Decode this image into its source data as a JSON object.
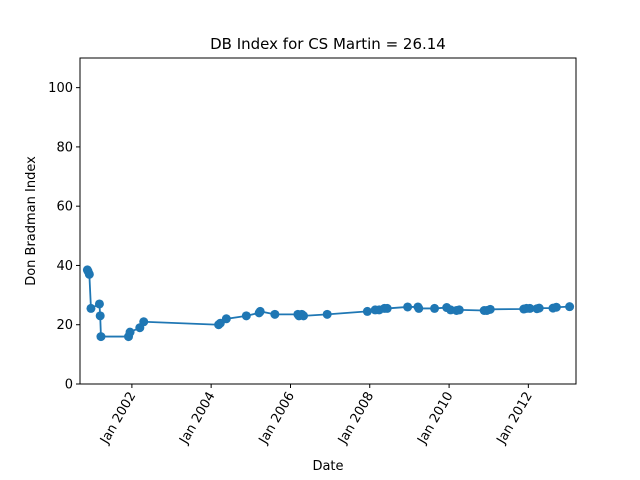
{
  "chart_data": {
    "type": "line",
    "title": "DB Index for CS Martin = 26.14",
    "xlabel": "Date",
    "ylabel": "Don Bradman Index",
    "ylim": [
      0,
      110
    ],
    "xlim": [
      "2000-09-10",
      "2013-03-15"
    ],
    "grid": false,
    "y_ticks": [
      0,
      20,
      40,
      60,
      80,
      100
    ],
    "x_ticks": [
      {
        "date": "2002-01-01",
        "label": "Jan 2002"
      },
      {
        "date": "2004-01-01",
        "label": "Jan 2004"
      },
      {
        "date": "2006-01-01",
        "label": "Jan 2006"
      },
      {
        "date": "2008-01-01",
        "label": "Jan 2008"
      },
      {
        "date": "2010-01-01",
        "label": "Jan 2010"
      },
      {
        "date": "2012-01-01",
        "label": "Jan 2012"
      }
    ],
    "color": "#1f77b4",
    "series": [
      {
        "x": [
          "2000-11-17",
          "2000-11-24",
          "2000-12-05",
          "2000-12-20",
          "2001-03-08",
          "2001-03-15",
          "2001-03-22",
          "2001-12-01",
          "2001-12-15",
          "2002-03-15",
          "2002-04-20",
          "2004-03-10",
          "2004-03-25",
          "2004-05-20",
          "2004-11-20",
          "2005-03-18",
          "2005-03-28",
          "2005-08-10",
          "2006-03-10",
          "2006-03-20",
          "2006-04-15",
          "2006-05-01",
          "2006-12-05",
          "2007-12-10",
          "2008-02-20",
          "2008-03-28",
          "2008-05-15",
          "2008-06-10",
          "2008-12-15",
          "2009-03-20",
          "2009-03-28",
          "2009-08-20",
          "2009-12-10",
          "2010-01-15",
          "2010-03-10",
          "2010-04-05",
          "2010-11-20",
          "2010-12-15",
          "2011-01-15",
          "2011-11-20",
          "2011-12-15",
          "2012-01-15",
          "2012-03-20",
          "2012-04-10",
          "2012-08-15",
          "2012-09-15",
          "2013-01-15"
        ],
        "y": [
          38.5,
          38,
          37,
          25.5,
          27,
          23,
          16,
          16,
          17.5,
          19,
          21,
          20,
          20.5,
          22,
          23,
          24,
          24.5,
          23.5,
          23.5,
          23,
          23.5,
          23,
          23.5,
          24.5,
          25,
          25,
          25.5,
          25.5,
          26,
          26,
          25.5,
          25.5,
          25.8,
          25,
          24.8,
          25,
          24.8,
          24.8,
          25.2,
          25.3,
          25.5,
          25.5,
          25.4,
          25.6,
          25.6,
          25.9,
          26.1
        ]
      }
    ]
  }
}
